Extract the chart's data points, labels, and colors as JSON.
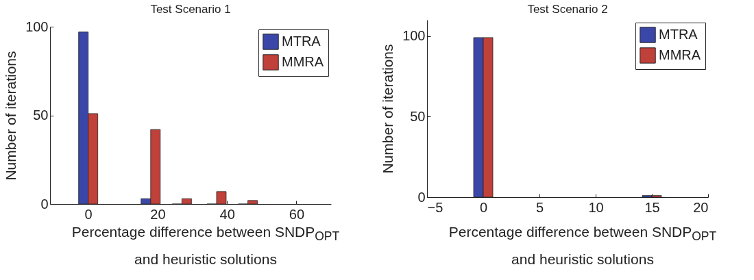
{
  "chart_data": [
    {
      "type": "bar",
      "title": "Test Scenario 1",
      "xlabel": "Percentage difference between SNDP$_{OPT}$ and heuristic solutions",
      "ylabel": "Number of iterations",
      "x": [
        0,
        18,
        27,
        37,
        46
      ],
      "series": [
        {
          "name": "MTRA",
          "color": "#3b47a8",
          "values": [
            97,
            3,
            0,
            0,
            0
          ]
        },
        {
          "name": "MMRA",
          "color": "#c0403a",
          "values": [
            51,
            42,
            3,
            7,
            2
          ]
        }
      ],
      "xlim": [
        -11,
        70
      ],
      "xticks": [
        0,
        20,
        40,
        60
      ],
      "ylim": [
        0,
        100
      ],
      "yticks": [
        0,
        50,
        100
      ],
      "legend": "top right"
    },
    {
      "type": "bar",
      "title": "Test Scenario 2",
      "xlabel": "Percentage difference between SNDP$_{OPT}$ and heuristic solutions",
      "ylabel": "Number of iterations",
      "x": [
        0,
        15
      ],
      "series": [
        {
          "name": "MTRA",
          "color": "#3b47a8",
          "values": [
            99,
            1
          ]
        },
        {
          "name": "MMRA",
          "color": "#c0403a",
          "values": [
            99,
            1
          ]
        }
      ],
      "xlim": [
        -5,
        20
      ],
      "xticks": [
        -5,
        0,
        5,
        10,
        15,
        20
      ],
      "ylim": [
        0,
        110
      ],
      "yticks": [
        0,
        50,
        100
      ],
      "legend": "top right"
    }
  ]
}
